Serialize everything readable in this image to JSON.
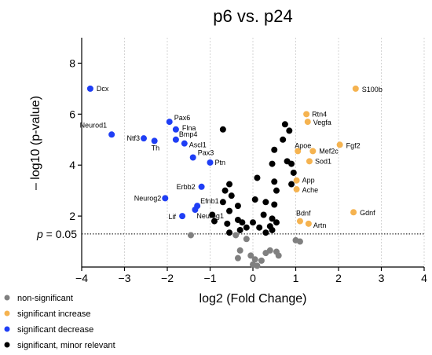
{
  "chart_data": {
    "type": "scatter",
    "title": "p6 vs. p24",
    "xlabel": "log2 (Fold Change)",
    "ylabel": "– log10 (p-value)",
    "xlim": [
      -4,
      4
    ],
    "ylim": [
      0,
      9
    ],
    "xticks": [
      -4,
      -3,
      -2,
      -1,
      0,
      1,
      2,
      3,
      4
    ],
    "yticks": [
      2,
      4,
      6,
      8
    ],
    "xtick_labels": [
      "−4",
      "−3",
      "−2",
      "−1",
      "0",
      "1",
      "2",
      "3",
      "4"
    ],
    "ytick_labels": [
      "2",
      "4",
      "6",
      "8"
    ],
    "grid": "vertical dotted lines",
    "threshold": {
      "y": 1.3,
      "label_italic": "p",
      "label_rest": " = 0.05"
    },
    "colors": {
      "non_significant": "#808080",
      "significant_increase": "#f5b350",
      "significant_decrease": "#1f3ef5",
      "significant_minor": "#000000"
    },
    "series": [
      {
        "name": "non-significant",
        "color_key": "non_significant",
        "points": [
          {
            "x": -1.45,
            "y": 1.25
          },
          {
            "x": -0.4,
            "y": 1.25
          },
          {
            "x": -0.15,
            "y": 1.1
          },
          {
            "x": -0.3,
            "y": 0.65
          },
          {
            "x": -0.05,
            "y": 0.45
          },
          {
            "x": 0.05,
            "y": 0.3
          },
          {
            "x": 0.0,
            "y": 0.1
          },
          {
            "x": 0.1,
            "y": 0.05
          },
          {
            "x": 0.2,
            "y": 0.25
          },
          {
            "x": 0.3,
            "y": 0.55
          },
          {
            "x": 0.4,
            "y": 0.65
          },
          {
            "x": 0.55,
            "y": 0.6
          },
          {
            "x": 0.6,
            "y": 0.45
          },
          {
            "x": -0.35,
            "y": 0.35
          },
          {
            "x": 1.0,
            "y": 1.05
          },
          {
            "x": 1.1,
            "y": 1.0
          }
        ]
      },
      {
        "name": "significant increase",
        "color_key": "significant_increase",
        "points": [
          {
            "x": 2.4,
            "y": 7.0,
            "label": "S100b"
          },
          {
            "x": 1.25,
            "y": 6.0,
            "label": "Rtn4"
          },
          {
            "x": 1.28,
            "y": 5.7,
            "label": "Vegfa"
          },
          {
            "x": 2.03,
            "y": 4.8,
            "label": "Fgf2"
          },
          {
            "x": 1.05,
            "y": 4.55,
            "label": "Apoe"
          },
          {
            "x": 1.4,
            "y": 4.55,
            "label": "Mef2c"
          },
          {
            "x": 1.32,
            "y": 4.15,
            "label": "Sod1"
          },
          {
            "x": 1.02,
            "y": 3.4,
            "label": "App"
          },
          {
            "x": 1.02,
            "y": 3.05,
            "label": "Ache"
          },
          {
            "x": 2.35,
            "y": 2.15,
            "label": "Gdnf"
          },
          {
            "x": 1.1,
            "y": 1.8,
            "label": "Bdnf"
          },
          {
            "x": 1.3,
            "y": 1.7,
            "label": "Artn"
          }
        ]
      },
      {
        "name": "significant decrease",
        "color_key": "significant_decrease",
        "points": [
          {
            "x": -3.8,
            "y": 7.0,
            "label": "Dcx"
          },
          {
            "x": -3.3,
            "y": 5.2,
            "label": "Neurod1"
          },
          {
            "x": -2.55,
            "y": 5.05,
            "label": "Ntf3"
          },
          {
            "x": -2.3,
            "y": 4.95,
            "label": "Th"
          },
          {
            "x": -1.95,
            "y": 5.7,
            "label": "Pax6"
          },
          {
            "x": -1.8,
            "y": 5.4,
            "label": "Flna"
          },
          {
            "x": -1.8,
            "y": 5.0,
            "label": "Bmp4"
          },
          {
            "x": -1.6,
            "y": 4.85,
            "label": "Ascl1"
          },
          {
            "x": -1.4,
            "y": 4.3,
            "label": "Pax3"
          },
          {
            "x": -1.0,
            "y": 4.1,
            "label": "Ptn"
          },
          {
            "x": -1.2,
            "y": 3.15,
            "label": "Erbb2"
          },
          {
            "x": -2.05,
            "y": 2.7,
            "label": "Neurog2"
          },
          {
            "x": -1.3,
            "y": 2.4,
            "label": "Efnb1"
          },
          {
            "x": -1.35,
            "y": 2.25,
            "label": "Neurog1"
          },
          {
            "x": -1.65,
            "y": 2.0,
            "label": "Lif"
          }
        ]
      },
      {
        "name": "significant, minor relevant",
        "color_key": "significant_minor",
        "points": [
          {
            "x": -0.7,
            "y": 5.4
          },
          {
            "x": 0.75,
            "y": 5.6
          },
          {
            "x": 0.85,
            "y": 5.35
          },
          {
            "x": 0.7,
            "y": 5.0
          },
          {
            "x": 0.5,
            "y": 4.6
          },
          {
            "x": 0.45,
            "y": 4.05
          },
          {
            "x": 0.8,
            "y": 4.15
          },
          {
            "x": 0.9,
            "y": 4.05
          },
          {
            "x": 0.95,
            "y": 3.7
          },
          {
            "x": 0.1,
            "y": 3.5
          },
          {
            "x": 0.5,
            "y": 3.35
          },
          {
            "x": 0.9,
            "y": 3.25
          },
          {
            "x": 0.55,
            "y": 3.0
          },
          {
            "x": -0.55,
            "y": 3.25
          },
          {
            "x": -0.65,
            "y": 3.0
          },
          {
            "x": -0.5,
            "y": 2.8
          },
          {
            "x": -0.7,
            "y": 2.55
          },
          {
            "x": -0.35,
            "y": 2.4
          },
          {
            "x": -0.55,
            "y": 2.2
          },
          {
            "x": 0.05,
            "y": 2.65
          },
          {
            "x": 0.3,
            "y": 2.55
          },
          {
            "x": 0.5,
            "y": 2.45
          },
          {
            "x": 0.25,
            "y": 2.05
          },
          {
            "x": 0.45,
            "y": 1.9
          },
          {
            "x": -0.95,
            "y": 2.05
          },
          {
            "x": -0.9,
            "y": 1.8
          },
          {
            "x": -0.6,
            "y": 1.7
          },
          {
            "x": -0.35,
            "y": 1.85
          },
          {
            "x": -0.25,
            "y": 1.75
          },
          {
            "x": -0.15,
            "y": 1.55
          },
          {
            "x": -0.55,
            "y": 1.35
          },
          {
            "x": -0.3,
            "y": 1.45
          },
          {
            "x": 0.15,
            "y": 1.55
          },
          {
            "x": 0.3,
            "y": 1.35
          },
          {
            "x": 0.45,
            "y": 1.45
          },
          {
            "x": 0.4,
            "y": 1.6
          },
          {
            "x": 0.55,
            "y": 1.75
          },
          {
            "x": 0.0,
            "y": 1.75
          }
        ]
      }
    ],
    "legend": {
      "placement": "bottom-left",
      "entries": [
        {
          "label": "non-significant",
          "color_key": "non_significant"
        },
        {
          "label": "significant increase",
          "color_key": "significant_increase"
        },
        {
          "label": "significant decrease",
          "color_key": "significant_decrease"
        },
        {
          "label": "significant, minor relevant",
          "color_key": "significant_minor"
        }
      ]
    }
  }
}
